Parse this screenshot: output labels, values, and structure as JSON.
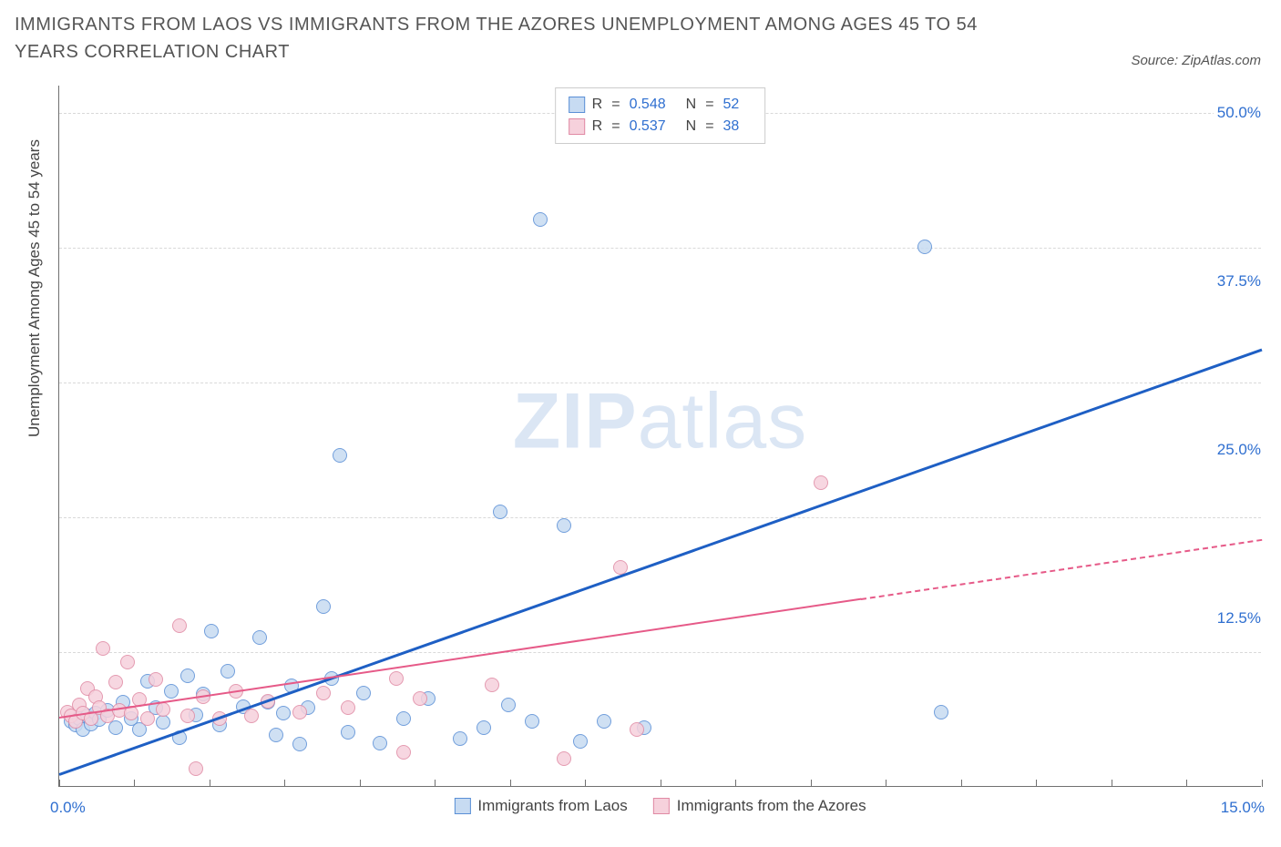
{
  "title": "IMMIGRANTS FROM LAOS VS IMMIGRANTS FROM THE AZORES UNEMPLOYMENT AMONG AGES 45 TO 54 YEARS CORRELATION CHART",
  "source_label": "Source: ZipAtlas.com",
  "y_axis_title": "Unemployment Among Ages 45 to 54 years",
  "watermark_bold": "ZIP",
  "watermark_light": "atlas",
  "chart": {
    "type": "scatter",
    "xlim": [
      0,
      15
    ],
    "ylim": [
      0,
      52
    ],
    "x_axis": {
      "left_label": "0.0%",
      "right_label": "15.0%",
      "tick_positions_pct": [
        0,
        6.2,
        12.5,
        18.7,
        25,
        31.2,
        37.5,
        43.7,
        50,
        56.2,
        62.5,
        68.7,
        75,
        81.2,
        87.5,
        93.7,
        100
      ]
    },
    "y_axis_right": {
      "labels": [
        {
          "value": 12.5,
          "text": "12.5%"
        },
        {
          "value": 25.0,
          "text": "25.0%"
        },
        {
          "value": 37.5,
          "text": "37.5%"
        },
        {
          "value": 50.0,
          "text": "50.0%"
        }
      ]
    },
    "gridlines_y": [
      10,
      20,
      30,
      40,
      50
    ],
    "background_color": "#ffffff",
    "grid_color": "#d9d9d9",
    "axis_color": "#707070"
  },
  "series": [
    {
      "key": "laos",
      "label": "Immigrants from Laos",
      "point_fill": "#c7dbf2",
      "point_stroke": "#5a8fd6",
      "swatch_fill": "#c7dbf2",
      "swatch_stroke": "#5a8fd6",
      "R_label": "R",
      "R_value": "0.548",
      "N_label": "N",
      "N_value": "52",
      "trend": {
        "color": "#1e5fc4",
        "width": 3,
        "solid_from": [
          0,
          1.0
        ],
        "solid_to": [
          15,
          32.5
        ],
        "dashed": false
      },
      "points": [
        [
          0.15,
          4.8
        ],
        [
          0.2,
          4.5
        ],
        [
          0.25,
          5.0
        ],
        [
          0.3,
          4.2
        ],
        [
          0.35,
          5.2
        ],
        [
          0.4,
          4.6
        ],
        [
          0.45,
          5.4
        ],
        [
          0.5,
          4.9
        ],
        [
          0.6,
          5.6
        ],
        [
          0.7,
          4.3
        ],
        [
          0.8,
          6.2
        ],
        [
          0.9,
          5.0
        ],
        [
          1.0,
          4.2
        ],
        [
          1.1,
          7.8
        ],
        [
          1.2,
          5.8
        ],
        [
          1.3,
          4.7
        ],
        [
          1.4,
          7.0
        ],
        [
          1.5,
          3.6
        ],
        [
          1.6,
          8.2
        ],
        [
          1.7,
          5.3
        ],
        [
          1.8,
          6.8
        ],
        [
          1.9,
          11.5
        ],
        [
          2.0,
          4.5
        ],
        [
          2.1,
          8.5
        ],
        [
          2.3,
          5.9
        ],
        [
          2.5,
          11.0
        ],
        [
          2.6,
          6.2
        ],
        [
          2.7,
          3.8
        ],
        [
          2.8,
          5.4
        ],
        [
          2.9,
          7.4
        ],
        [
          3.0,
          3.1
        ],
        [
          3.1,
          5.8
        ],
        [
          3.3,
          13.3
        ],
        [
          3.4,
          8.0
        ],
        [
          3.5,
          24.5
        ],
        [
          3.6,
          4.0
        ],
        [
          3.8,
          6.9
        ],
        [
          4.0,
          3.2
        ],
        [
          4.3,
          5.0
        ],
        [
          4.6,
          6.5
        ],
        [
          5.0,
          3.5
        ],
        [
          5.3,
          4.3
        ],
        [
          5.5,
          20.3
        ],
        [
          5.6,
          6.0
        ],
        [
          5.9,
          4.8
        ],
        [
          6.0,
          42.0
        ],
        [
          6.3,
          19.3
        ],
        [
          6.5,
          3.3
        ],
        [
          6.8,
          4.8
        ],
        [
          7.3,
          4.3
        ],
        [
          10.8,
          40.0
        ],
        [
          11.0,
          5.5
        ]
      ]
    },
    {
      "key": "azores",
      "label": "Immigrants from the Azores",
      "point_fill": "#f6d1dc",
      "point_stroke": "#e08aa4",
      "swatch_fill": "#f6d1dc",
      "swatch_stroke": "#e08aa4",
      "R_label": "R",
      "R_value": "0.537",
      "N_label": "N",
      "N_value": "38",
      "trend": {
        "color": "#e65a88",
        "width": 2,
        "solid_from": [
          0,
          5.2
        ],
        "solid_to": [
          10.0,
          14.0
        ],
        "dashed_to": [
          15,
          18.4
        ]
      },
      "points": [
        [
          0.1,
          5.5
        ],
        [
          0.15,
          5.2
        ],
        [
          0.2,
          4.8
        ],
        [
          0.25,
          6.0
        ],
        [
          0.3,
          5.4
        ],
        [
          0.35,
          7.2
        ],
        [
          0.4,
          5.0
        ],
        [
          0.45,
          6.6
        ],
        [
          0.5,
          5.8
        ],
        [
          0.55,
          10.2
        ],
        [
          0.6,
          5.2
        ],
        [
          0.7,
          7.7
        ],
        [
          0.75,
          5.6
        ],
        [
          0.85,
          9.2
        ],
        [
          0.9,
          5.4
        ],
        [
          1.0,
          6.4
        ],
        [
          1.1,
          5.0
        ],
        [
          1.2,
          7.9
        ],
        [
          1.3,
          5.7
        ],
        [
          1.5,
          11.9
        ],
        [
          1.6,
          5.2
        ],
        [
          1.7,
          1.3
        ],
        [
          1.8,
          6.6
        ],
        [
          2.0,
          5.0
        ],
        [
          2.2,
          7.0
        ],
        [
          2.4,
          5.2
        ],
        [
          2.6,
          6.3
        ],
        [
          3.0,
          5.5
        ],
        [
          3.3,
          6.9
        ],
        [
          3.6,
          5.8
        ],
        [
          4.2,
          8.0
        ],
        [
          4.3,
          2.5
        ],
        [
          4.5,
          6.5
        ],
        [
          5.4,
          7.5
        ],
        [
          6.3,
          2.0
        ],
        [
          7.0,
          16.2
        ],
        [
          7.2,
          4.2
        ],
        [
          9.5,
          22.5
        ]
      ]
    }
  ]
}
